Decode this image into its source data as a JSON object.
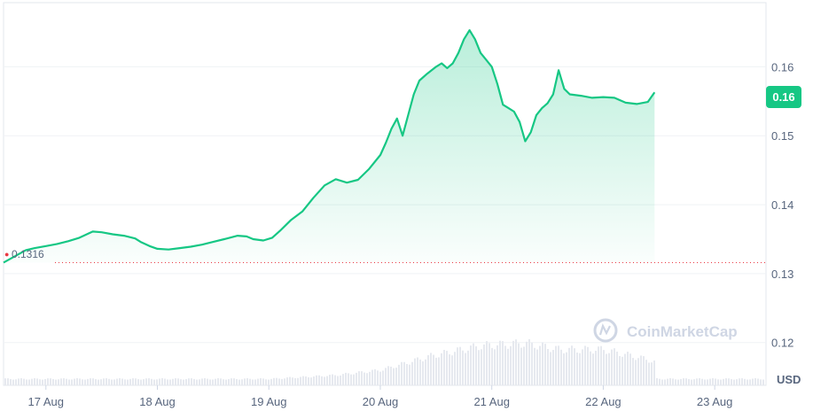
{
  "chart_data": {
    "type": "area",
    "watermark": "CoinMarketCap",
    "currency": "USD",
    "x_labels": [
      "17 Aug",
      "18 Aug",
      "19 Aug",
      "20 Aug",
      "21 Aug",
      "22 Aug",
      "23 Aug"
    ],
    "y_ticks": [
      "0.16",
      "0.15",
      "0.14",
      "0.13",
      "0.12"
    ],
    "ylim": [
      0.1138,
      0.1693
    ],
    "xlim": [
      16.62,
      23.46
    ],
    "reference_price": 0.1316,
    "reference_label": "0.1316",
    "current_price_label": "0.16",
    "current_price": 0.1563,
    "colors": {
      "line": "#16c784",
      "reference": "#ea3943",
      "volume": "#e6e9ef",
      "grid": "#eff2f5"
    },
    "grid": true,
    "series": [
      {
        "values": [
          [
            16.62,
            0.1316
          ],
          [
            16.82,
            0.1334
          ],
          [
            16.9,
            0.1337
          ],
          [
            17.0,
            0.134
          ],
          [
            17.1,
            0.1343
          ],
          [
            17.2,
            0.1347
          ],
          [
            17.3,
            0.1352
          ],
          [
            17.42,
            0.1361
          ],
          [
            17.5,
            0.136
          ],
          [
            17.6,
            0.1357
          ],
          [
            17.7,
            0.1355
          ],
          [
            17.8,
            0.1351
          ],
          [
            17.85,
            0.1346
          ],
          [
            17.93,
            0.134
          ],
          [
            18.0,
            0.1336
          ],
          [
            18.1,
            0.1335
          ],
          [
            18.2,
            0.1337
          ],
          [
            18.3,
            0.1339
          ],
          [
            18.4,
            0.1342
          ],
          [
            18.5,
            0.1346
          ],
          [
            18.6,
            0.135
          ],
          [
            18.72,
            0.1355
          ],
          [
            18.8,
            0.1354
          ],
          [
            18.86,
            0.135
          ],
          [
            18.95,
            0.1348
          ],
          [
            19.03,
            0.1352
          ],
          [
            19.1,
            0.1362
          ],
          [
            19.2,
            0.1378
          ],
          [
            19.3,
            0.139
          ],
          [
            19.4,
            0.141
          ],
          [
            19.5,
            0.1428
          ],
          [
            19.6,
            0.1437
          ],
          [
            19.7,
            0.1432
          ],
          [
            19.8,
            0.1436
          ],
          [
            19.9,
            0.1452
          ],
          [
            20.0,
            0.1472
          ],
          [
            20.05,
            0.149
          ],
          [
            20.1,
            0.151
          ],
          [
            20.15,
            0.1525
          ],
          [
            20.2,
            0.15
          ],
          [
            20.25,
            0.153
          ],
          [
            20.3,
            0.156
          ],
          [
            20.35,
            0.158
          ],
          [
            20.42,
            0.159
          ],
          [
            20.5,
            0.16
          ],
          [
            20.55,
            0.1605
          ],
          [
            20.6,
            0.1598
          ],
          [
            20.65,
            0.1605
          ],
          [
            20.7,
            0.162
          ],
          [
            20.75,
            0.164
          ],
          [
            20.8,
            0.1653
          ],
          [
            20.85,
            0.164
          ],
          [
            20.9,
            0.162
          ],
          [
            20.95,
            0.161
          ],
          [
            21.0,
            0.16
          ],
          [
            21.05,
            0.1575
          ],
          [
            21.1,
            0.1545
          ],
          [
            21.15,
            0.154
          ],
          [
            21.2,
            0.1535
          ],
          [
            21.25,
            0.152
          ],
          [
            21.3,
            0.1492
          ],
          [
            21.35,
            0.1505
          ],
          [
            21.4,
            0.153
          ],
          [
            21.45,
            0.154
          ],
          [
            21.5,
            0.1547
          ],
          [
            21.55,
            0.156
          ],
          [
            21.6,
            0.1595
          ],
          [
            21.65,
            0.1568
          ],
          [
            21.7,
            0.156
          ],
          [
            21.8,
            0.1558
          ],
          [
            21.9,
            0.1555
          ],
          [
            22.0,
            0.1556
          ],
          [
            22.1,
            0.1555
          ],
          [
            22.2,
            0.1548
          ],
          [
            22.3,
            0.1546
          ],
          [
            22.4,
            0.1549
          ],
          [
            22.46,
            0.1563
          ]
        ]
      }
    ]
  }
}
